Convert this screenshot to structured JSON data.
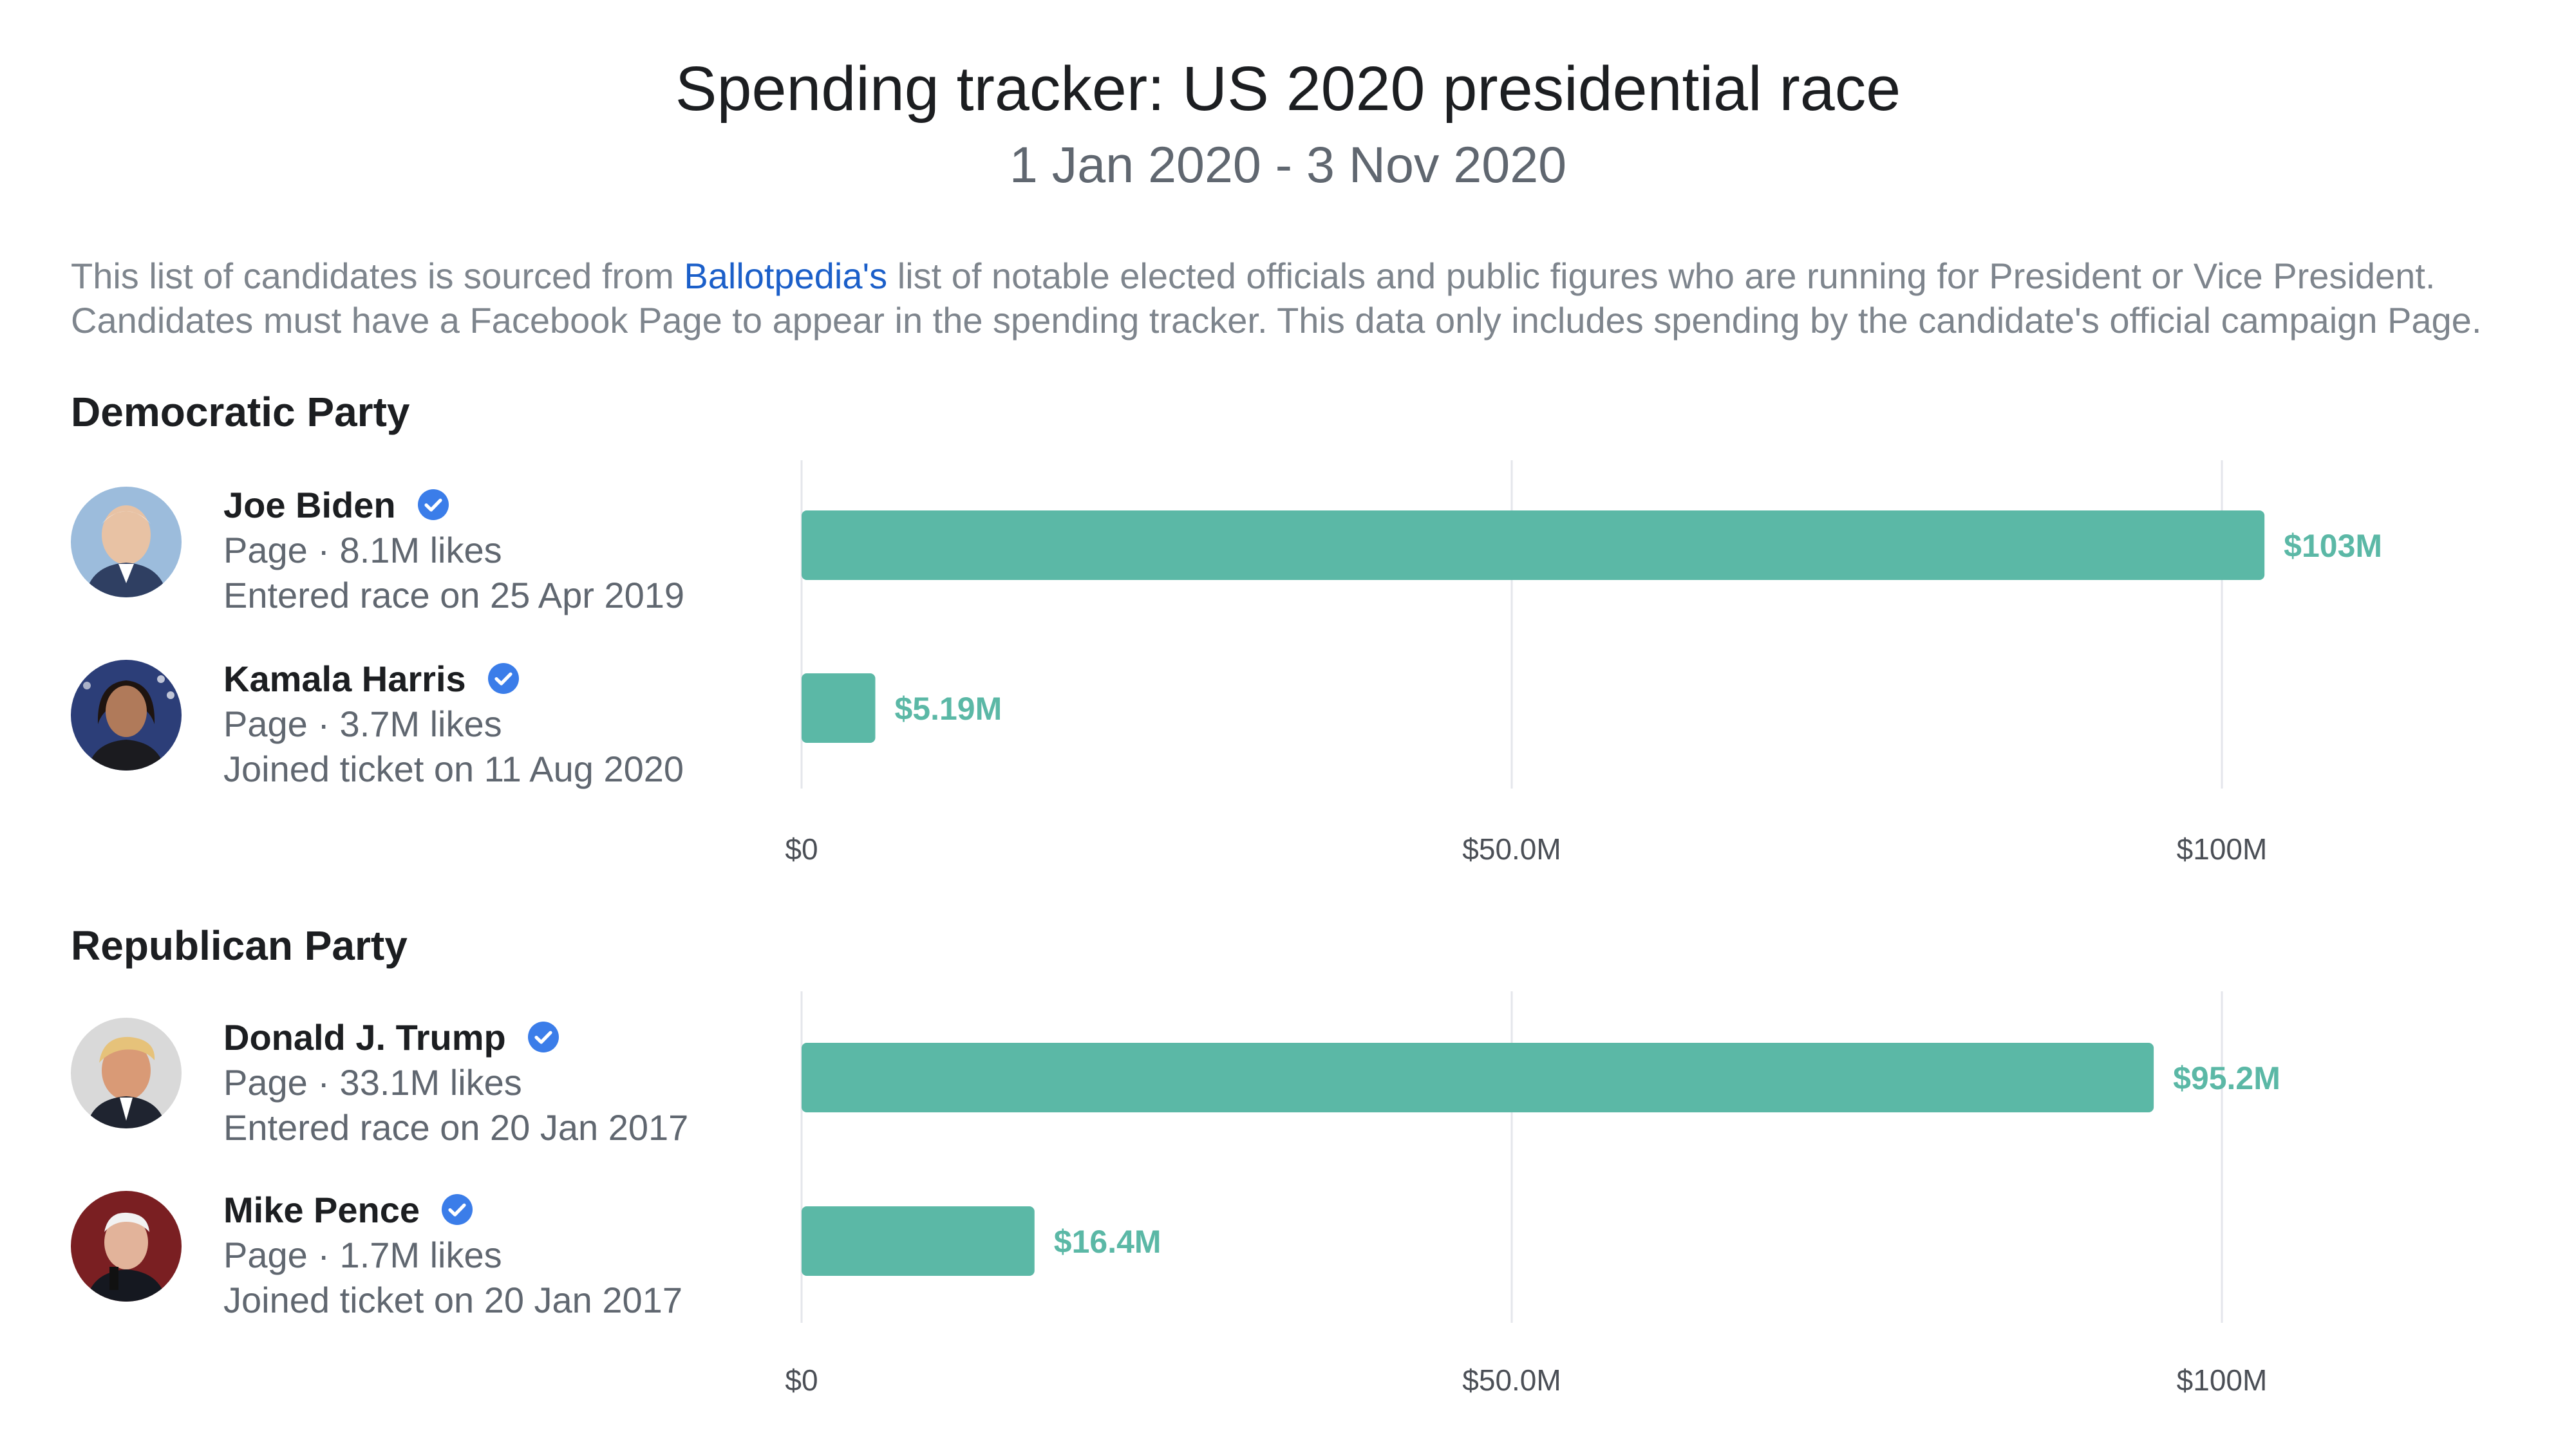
{
  "header": {
    "title": "Spending tracker: US 2020 presidential race",
    "subtitle": "1 Jan 2020 - 3 Nov 2020"
  },
  "description": {
    "line1_prefix": "This list of candidates is sourced from ",
    "line1_link": "Ballotpedia's",
    "line1_suffix": " list of notable elected officials and public figures who are running for President or Vice President.",
    "line2": "Candidates must have a Facebook Page to appear in the spending tracker. This data only includes spending by the candidate's official campaign Page."
  },
  "colors": {
    "bar": "#5bb8a6",
    "link": "#1b5fc9",
    "verified_badge": "#3b7de9",
    "gridline": "#e4e6eb"
  },
  "parties": [
    {
      "name": "Democratic Party",
      "candidates": [
        {
          "name": "Joe Biden",
          "page_likes": "Page · 8.1M likes",
          "status": "Entered race on 25 Apr 2019",
          "spend_label": "$103M",
          "verified": true,
          "avatar_icon": "candidate-photo-icon"
        },
        {
          "name": "Kamala Harris",
          "page_likes": "Page · 3.7M likes",
          "status": "Joined ticket on 11 Aug 2020",
          "spend_label": "$5.19M",
          "verified": true,
          "avatar_icon": "candidate-photo-icon"
        }
      ]
    },
    {
      "name": "Republican Party",
      "candidates": [
        {
          "name": "Donald J. Trump",
          "page_likes": "Page · 33.1M likes",
          "status": "Entered race on 20 Jan 2017",
          "spend_label": "$95.2M",
          "verified": true,
          "avatar_icon": "candidate-photo-icon"
        },
        {
          "name": "Mike Pence",
          "page_likes": "Page · 1.7M likes",
          "status": "Joined ticket on 20 Jan 2017",
          "spend_label": "$16.4M",
          "verified": true,
          "avatar_icon": "candidate-photo-icon"
        }
      ]
    }
  ],
  "chart_data": [
    {
      "type": "bar",
      "orientation": "horizontal",
      "categories": [
        "Joe Biden",
        "Kamala Harris"
      ],
      "values": [
        103,
        5.19
      ],
      "unit": "USD millions",
      "value_labels": [
        "$103M",
        "$5.19M"
      ],
      "xlim": [
        0,
        100
      ],
      "x_ticks": [
        0,
        50,
        100
      ],
      "x_tick_labels": [
        "$0",
        "$50.0M",
        "$100M"
      ],
      "grid": true
    },
    {
      "type": "bar",
      "orientation": "horizontal",
      "categories": [
        "Donald J. Trump",
        "Mike Pence"
      ],
      "values": [
        95.2,
        16.4
      ],
      "unit": "USD millions",
      "value_labels": [
        "$95.2M",
        "$16.4M"
      ],
      "xlim": [
        0,
        100
      ],
      "x_ticks": [
        0,
        50,
        100
      ],
      "x_tick_labels": [
        "$0",
        "$50.0M",
        "$100M"
      ],
      "grid": true
    }
  ]
}
